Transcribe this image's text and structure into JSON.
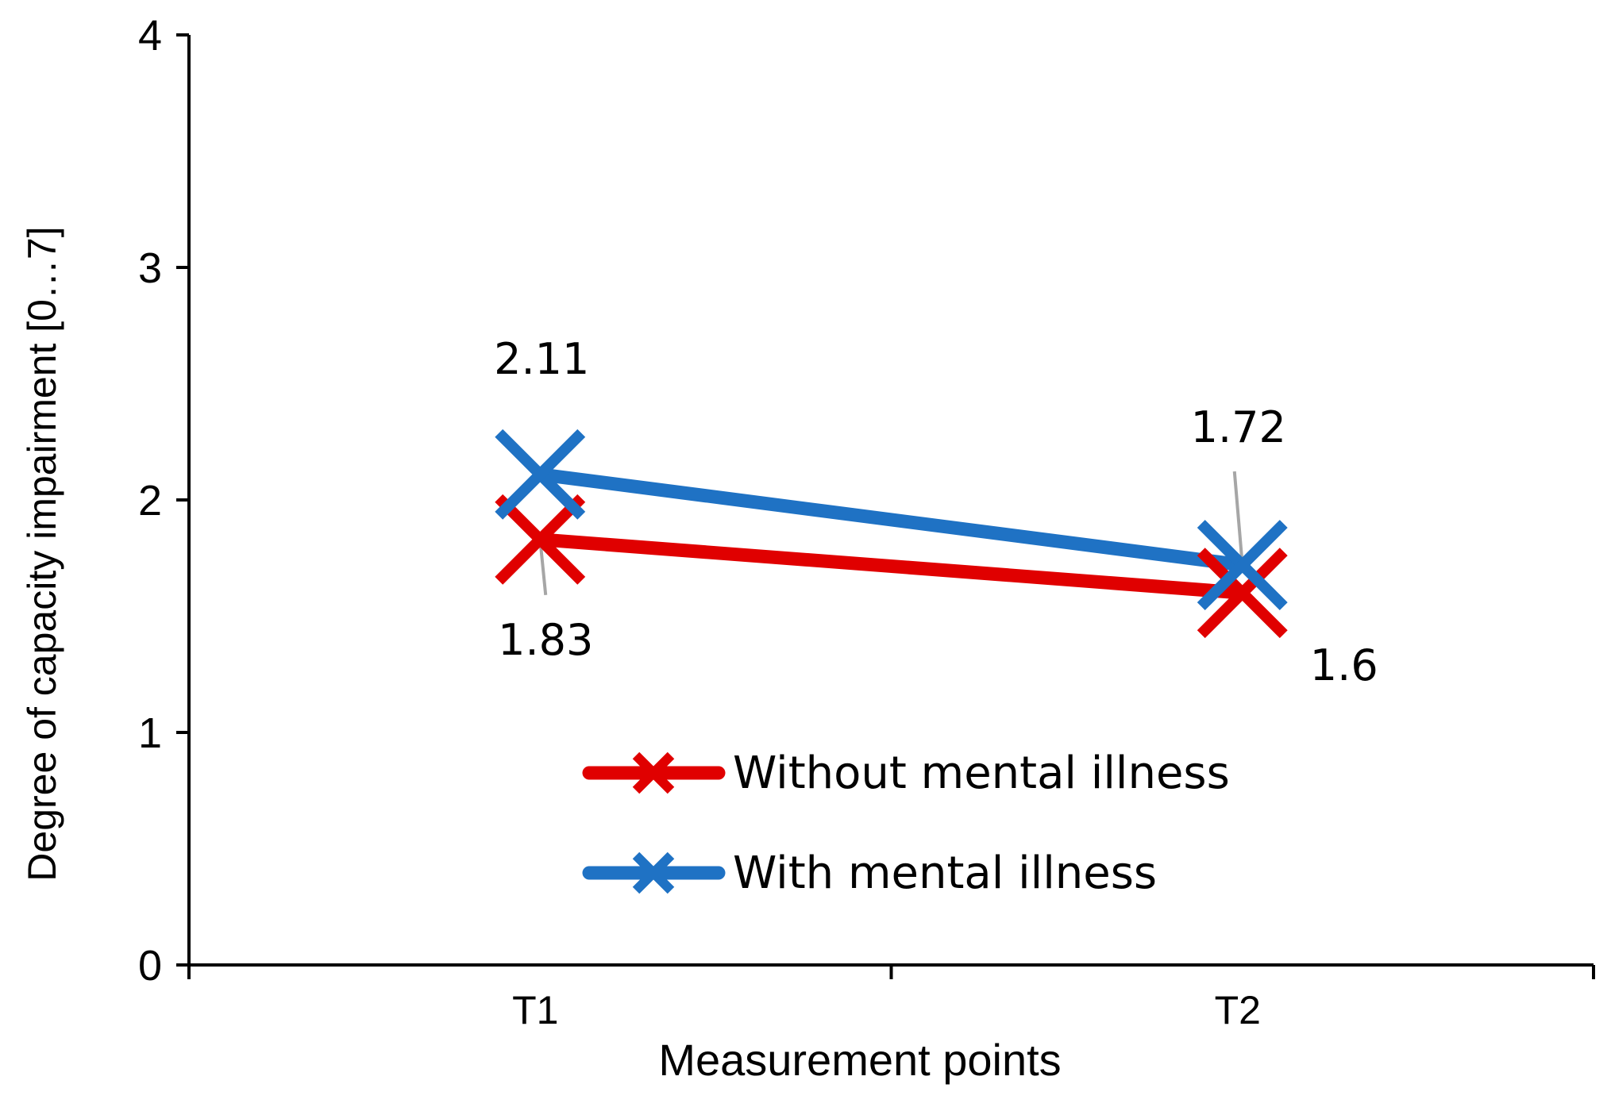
{
  "chart_data": {
    "type": "line",
    "title": "",
    "xlabel": "Measurement points",
    "ylabel": "Degree of capacity impairment [0…7]",
    "categories": [
      "T1",
      "T2"
    ],
    "ylim": [
      0,
      4
    ],
    "yticks": [
      "0",
      "1",
      "2",
      "3",
      "4"
    ],
    "grid": false,
    "legend_position": "bottom-center",
    "series": [
      {
        "name": "Without mental illness",
        "values": [
          1.83,
          1.6
        ],
        "data_labels": [
          "1.83",
          "1.6"
        ],
        "color": "#e00000",
        "marker": "x"
      },
      {
        "name": "With mental illness",
        "values": [
          2.11,
          1.72
        ],
        "data_labels": [
          "2.11",
          "1.72"
        ],
        "color": "#1f72c4",
        "marker": "x"
      }
    ]
  }
}
